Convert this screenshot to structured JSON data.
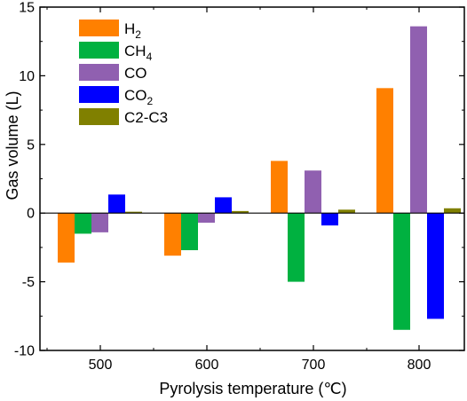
{
  "chart_data": {
    "type": "bar",
    "xlabel": "Pyrolysis temperature (℃)",
    "ylabel": "Gas volume (L)",
    "ylim": [
      -10,
      15
    ],
    "yticks": [
      "-10",
      "-5",
      "0",
      "5",
      "10",
      "15"
    ],
    "categories": [
      "500",
      "600",
      "700",
      "800"
    ],
    "series": [
      {
        "name": "H2",
        "label_main": "H",
        "label_sub": "2",
        "color": "#ff8000",
        "values": [
          -3.6,
          -3.1,
          3.8,
          9.1
        ]
      },
      {
        "name": "CH4",
        "label_main": "CH",
        "label_sub": "4",
        "color": "#00b140",
        "values": [
          -1.5,
          -2.7,
          -5.0,
          -8.5
        ]
      },
      {
        "name": "CO",
        "label_main": "CO",
        "label_sub": "",
        "color": "#9060b0",
        "values": [
          -1.4,
          -0.7,
          3.1,
          13.6
        ]
      },
      {
        "name": "CO2",
        "label_main": "CO",
        "label_sub": "2",
        "color": "#0000ff",
        "values": [
          1.35,
          1.15,
          -0.9,
          -7.7
        ]
      },
      {
        "name": "C2-C3",
        "label_main": "C2-C3",
        "label_sub": "",
        "color": "#808000",
        "values": [
          0.1,
          0.15,
          0.25,
          0.35
        ]
      }
    ],
    "legend_position": "top-left",
    "grid": false
  }
}
